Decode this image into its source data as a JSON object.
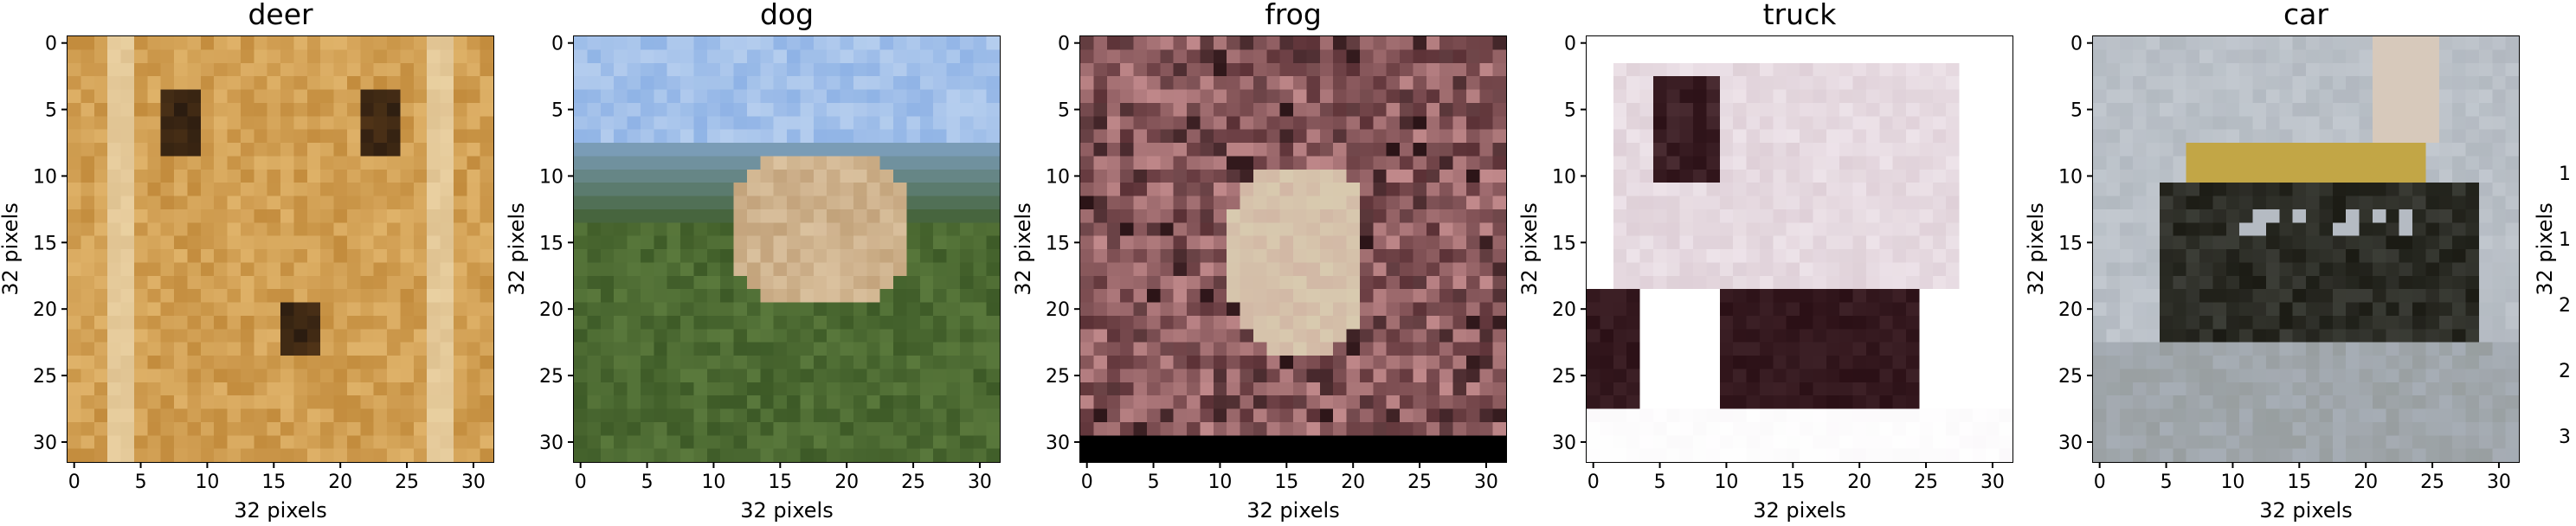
{
  "panels": [
    {
      "title": "deer",
      "xlabel": "32 pixels",
      "ylabel": "32 pixels",
      "image_description": "",
      "palette": [
        "#c38c3d",
        "#e0b36a",
        "#8a5a24",
        "#2b1c10",
        "#efe0bf",
        "#a8752f"
      ]
    },
    {
      "title": "dog",
      "xlabel": "32 pixels",
      "ylabel": "32 pixels",
      "palette": [
        "#8fb3e6",
        "#cfe0f4",
        "#5b7a3d",
        "#3d5a27",
        "#c2a27a",
        "#e6d0b0"
      ]
    },
    {
      "title": "frog",
      "xlabel": "32 pixels",
      "ylabel": "32 pixels",
      "palette": [
        "#5b3136",
        "#8a5a5e",
        "#c28a8c",
        "#2b1417",
        "#d9cbb0",
        "#000000"
      ]
    },
    {
      "title": "truck",
      "xlabel": "32 pixels",
      "ylabel": "32 pixels",
      "palette": [
        "#ffffff",
        "#eee4ea",
        "#d5c3cc",
        "#2b1016",
        "#6b4a50",
        "#f6f2f6"
      ]
    },
    {
      "title": "car",
      "xlabel": "32 pixels",
      "ylabel": "32 pixels",
      "palette": [
        "#c3c9d0",
        "#a7aeb6",
        "#8a8f8a",
        "#1b1b14",
        "#c9a52b",
        "#e0c9b2"
      ]
    }
  ],
  "ticks": [
    "0",
    "5",
    "10",
    "15",
    "20",
    "25",
    "30"
  ],
  "colors": {
    "axis": "#000000",
    "background": "#ffffff"
  }
}
